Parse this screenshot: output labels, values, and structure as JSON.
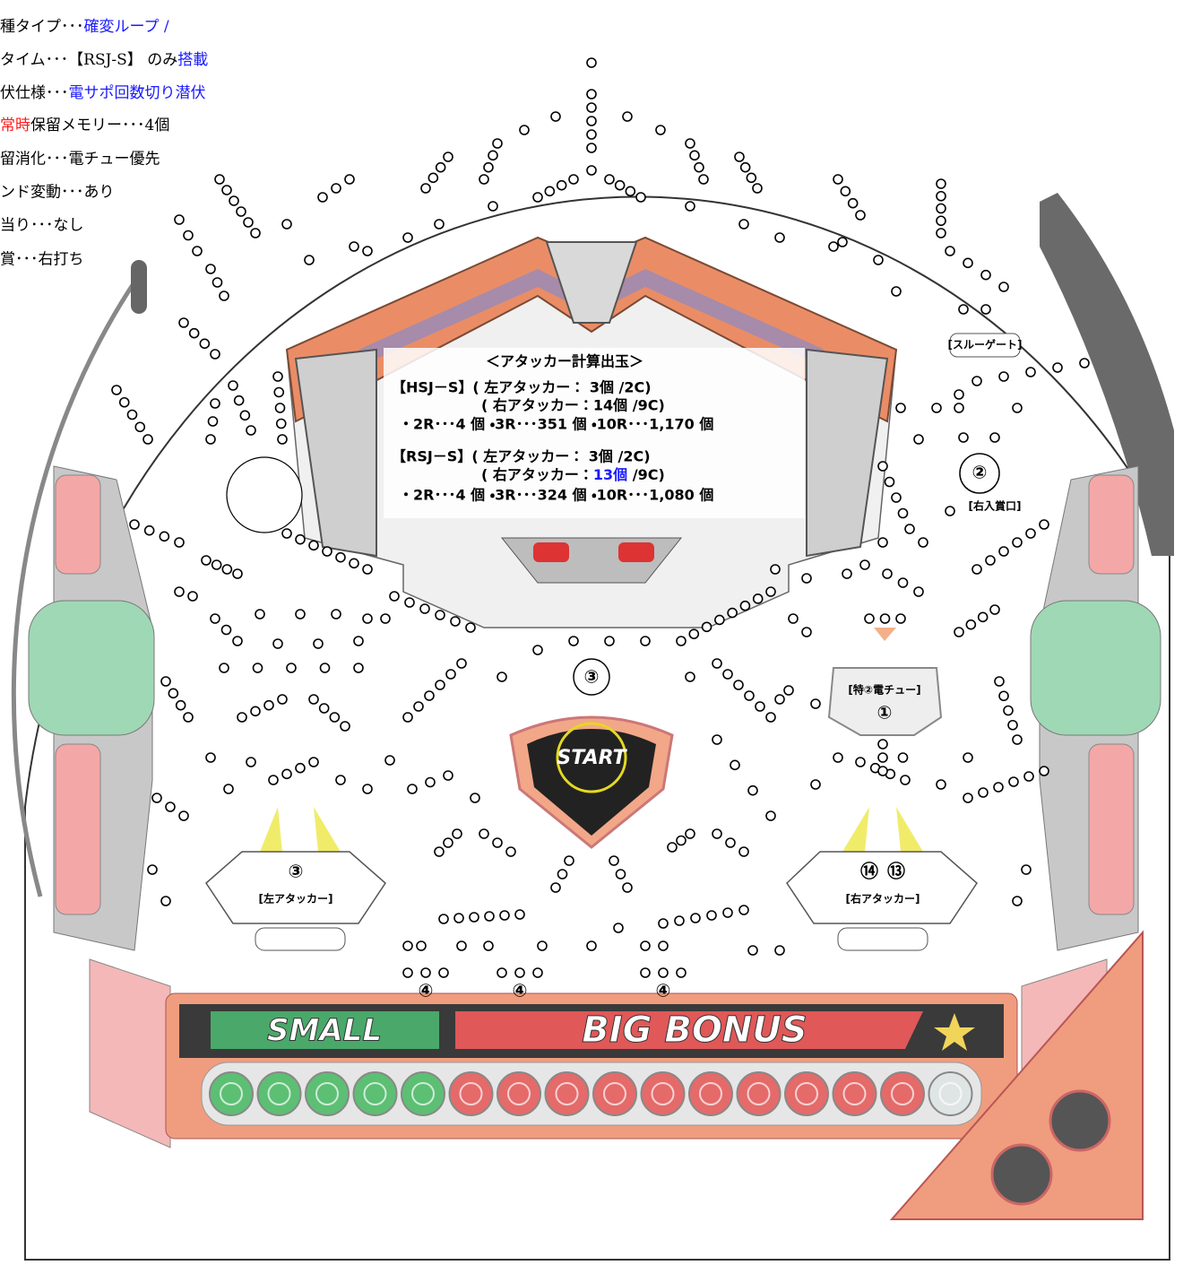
{
  "spec_lines": [
    [
      "種タイプ･･･",
      "確変ループ /"
    ],
    [
      "タイム･･･【RSJ-S】 のみ",
      "搭載"
    ],
    [
      "伏仕様･･･",
      "電サポ回数切り潜伏"
    ],
    [
      "常時",
      "保留メモリー･･･4個"
    ],
    [
      "留消化･･･電チュー優先"
    ],
    [
      "ンド変動･･･あり"
    ],
    [
      "当り･･･なし"
    ],
    [
      "賞･･･右打ち"
    ]
  ],
  "calc": {
    "title": "＜アタッカー計算出玉＞",
    "hsj_left": "【HSJ－S】( 左アタッカー： 3個 /2C)",
    "hsj_right": "( 右アタッカー：14個 /9C)",
    "hsj_rounds": "・2R･･･4 個 ・3R･･･351 個 ・10R･･･1,170 個",
    "rsj_left": "【RSJ－S】( 左アタッカー： 3個 /2C)",
    "rsj_right_a": "( 右アタッカー：",
    "rsj_right_b": "13個",
    "rsj_right_c": " /9C)",
    "rsj_rounds": "・2R･･･4 個 ・3R･･･324 個 ・10R･･･1,080 個"
  },
  "board": {
    "through_gate": "[スルーゲート]",
    "right_entry_num": "②",
    "right_entry": "[右入賞口]",
    "start_num": "③",
    "start": "START",
    "denchu": "[特②電チュー]",
    "denchu_num": "①",
    "left_attacker_num": "③",
    "left_attacker": "[左アタッカー]",
    "right_attacker_num_hsj": "⑭",
    "right_attacker_num_rsj": "⑬",
    "right_attacker": "[右アタッカー]",
    "small_num": "④",
    "big_num_1": "④",
    "big_num_2": "④",
    "small": "SMALL",
    "big_bonus": "BIG BONUS"
  }
}
